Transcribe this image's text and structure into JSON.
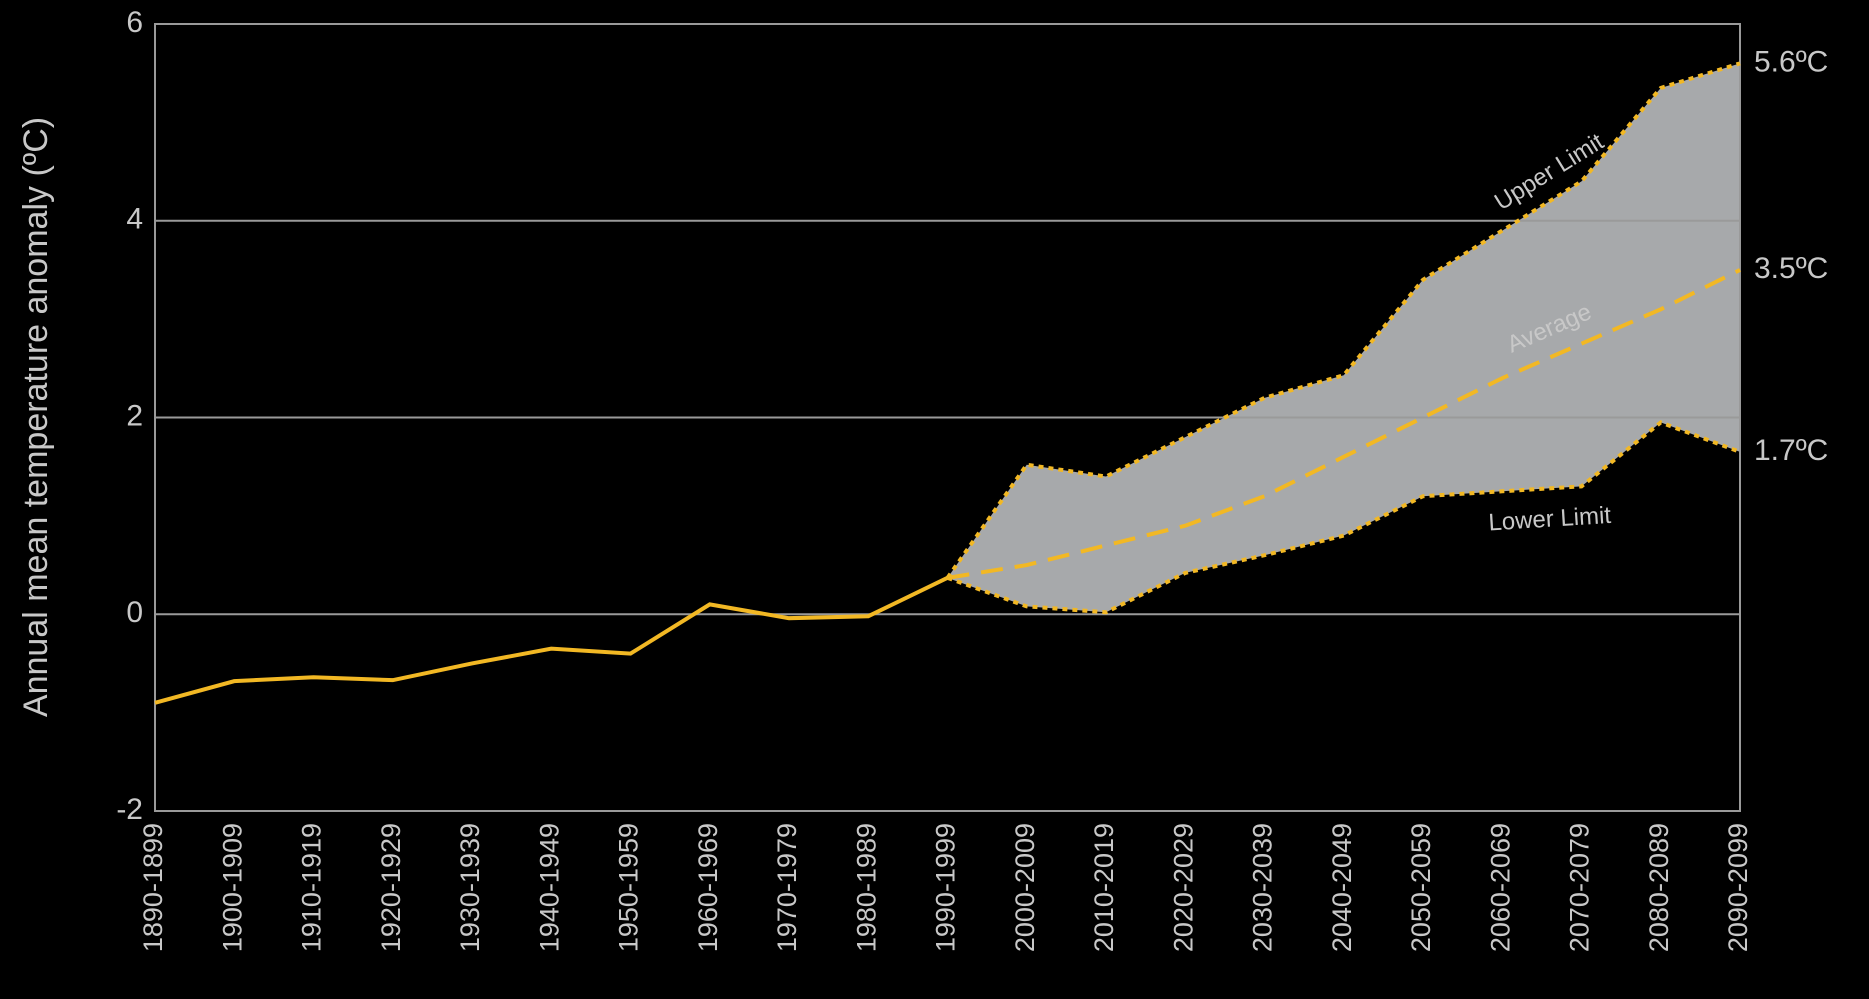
{
  "chart_data": {
    "type": "line",
    "ylabel": "Annual mean temperature anomaly (ºC)",
    "categories": [
      "1890-1899",
      "1900-1909",
      "1910-1919",
      "1920-1929",
      "1930-1939",
      "1940-1949",
      "1950-1959",
      "1960-1969",
      "1970-1979",
      "1980-1989",
      "1990-1999",
      "2000-2009",
      "2010-2019",
      "2020-2029",
      "2030-2039",
      "2040-2049",
      "2050-2059",
      "2060-2069",
      "2070-2079",
      "2080-2089",
      "2090-2099"
    ],
    "series": [
      {
        "color": "#f2b824",
        "dash": "solid",
        "values": [
          -0.9,
          -0.68,
          -0.64,
          -0.67,
          -0.5,
          -0.35,
          -0.4,
          0.1,
          -0.04,
          -0.02,
          0.37,
          null,
          null,
          null,
          null,
          null,
          null,
          null,
          null,
          null,
          null
        ]
      },
      {
        "name": "Upper Limit",
        "color": "#f2b824",
        "dash": "dotted",
        "end_label": "5.6ºC",
        "values": [
          null,
          null,
          null,
          null,
          null,
          null,
          null,
          null,
          null,
          null,
          0.37,
          1.52,
          1.4,
          1.8,
          2.2,
          2.43,
          3.4,
          3.9,
          4.4,
          5.35,
          5.6
        ]
      },
      {
        "name": "Average",
        "color": "#f2b824",
        "dash": "dashed",
        "end_label": "3.5ºC",
        "values": [
          null,
          null,
          null,
          null,
          null,
          null,
          null,
          null,
          null,
          null,
          0.37,
          0.5,
          0.7,
          0.9,
          1.2,
          1.6,
          2.0,
          2.4,
          2.75,
          3.1,
          3.5
        ]
      },
      {
        "name": "Lower Limit",
        "color": "#f2b824",
        "dash": "dotted",
        "end_label": "1.7ºC",
        "values": [
          null,
          null,
          null,
          null,
          null,
          null,
          null,
          null,
          null,
          null,
          0.37,
          0.08,
          0.02,
          0.42,
          0.6,
          0.8,
          1.2,
          1.25,
          1.3,
          1.95,
          1.65
        ]
      }
    ],
    "band_color": "#a7a9ab",
    "ylim": [
      -2,
      6
    ],
    "yticks": [
      -2,
      0,
      2,
      4,
      6
    ],
    "grid": true
  }
}
